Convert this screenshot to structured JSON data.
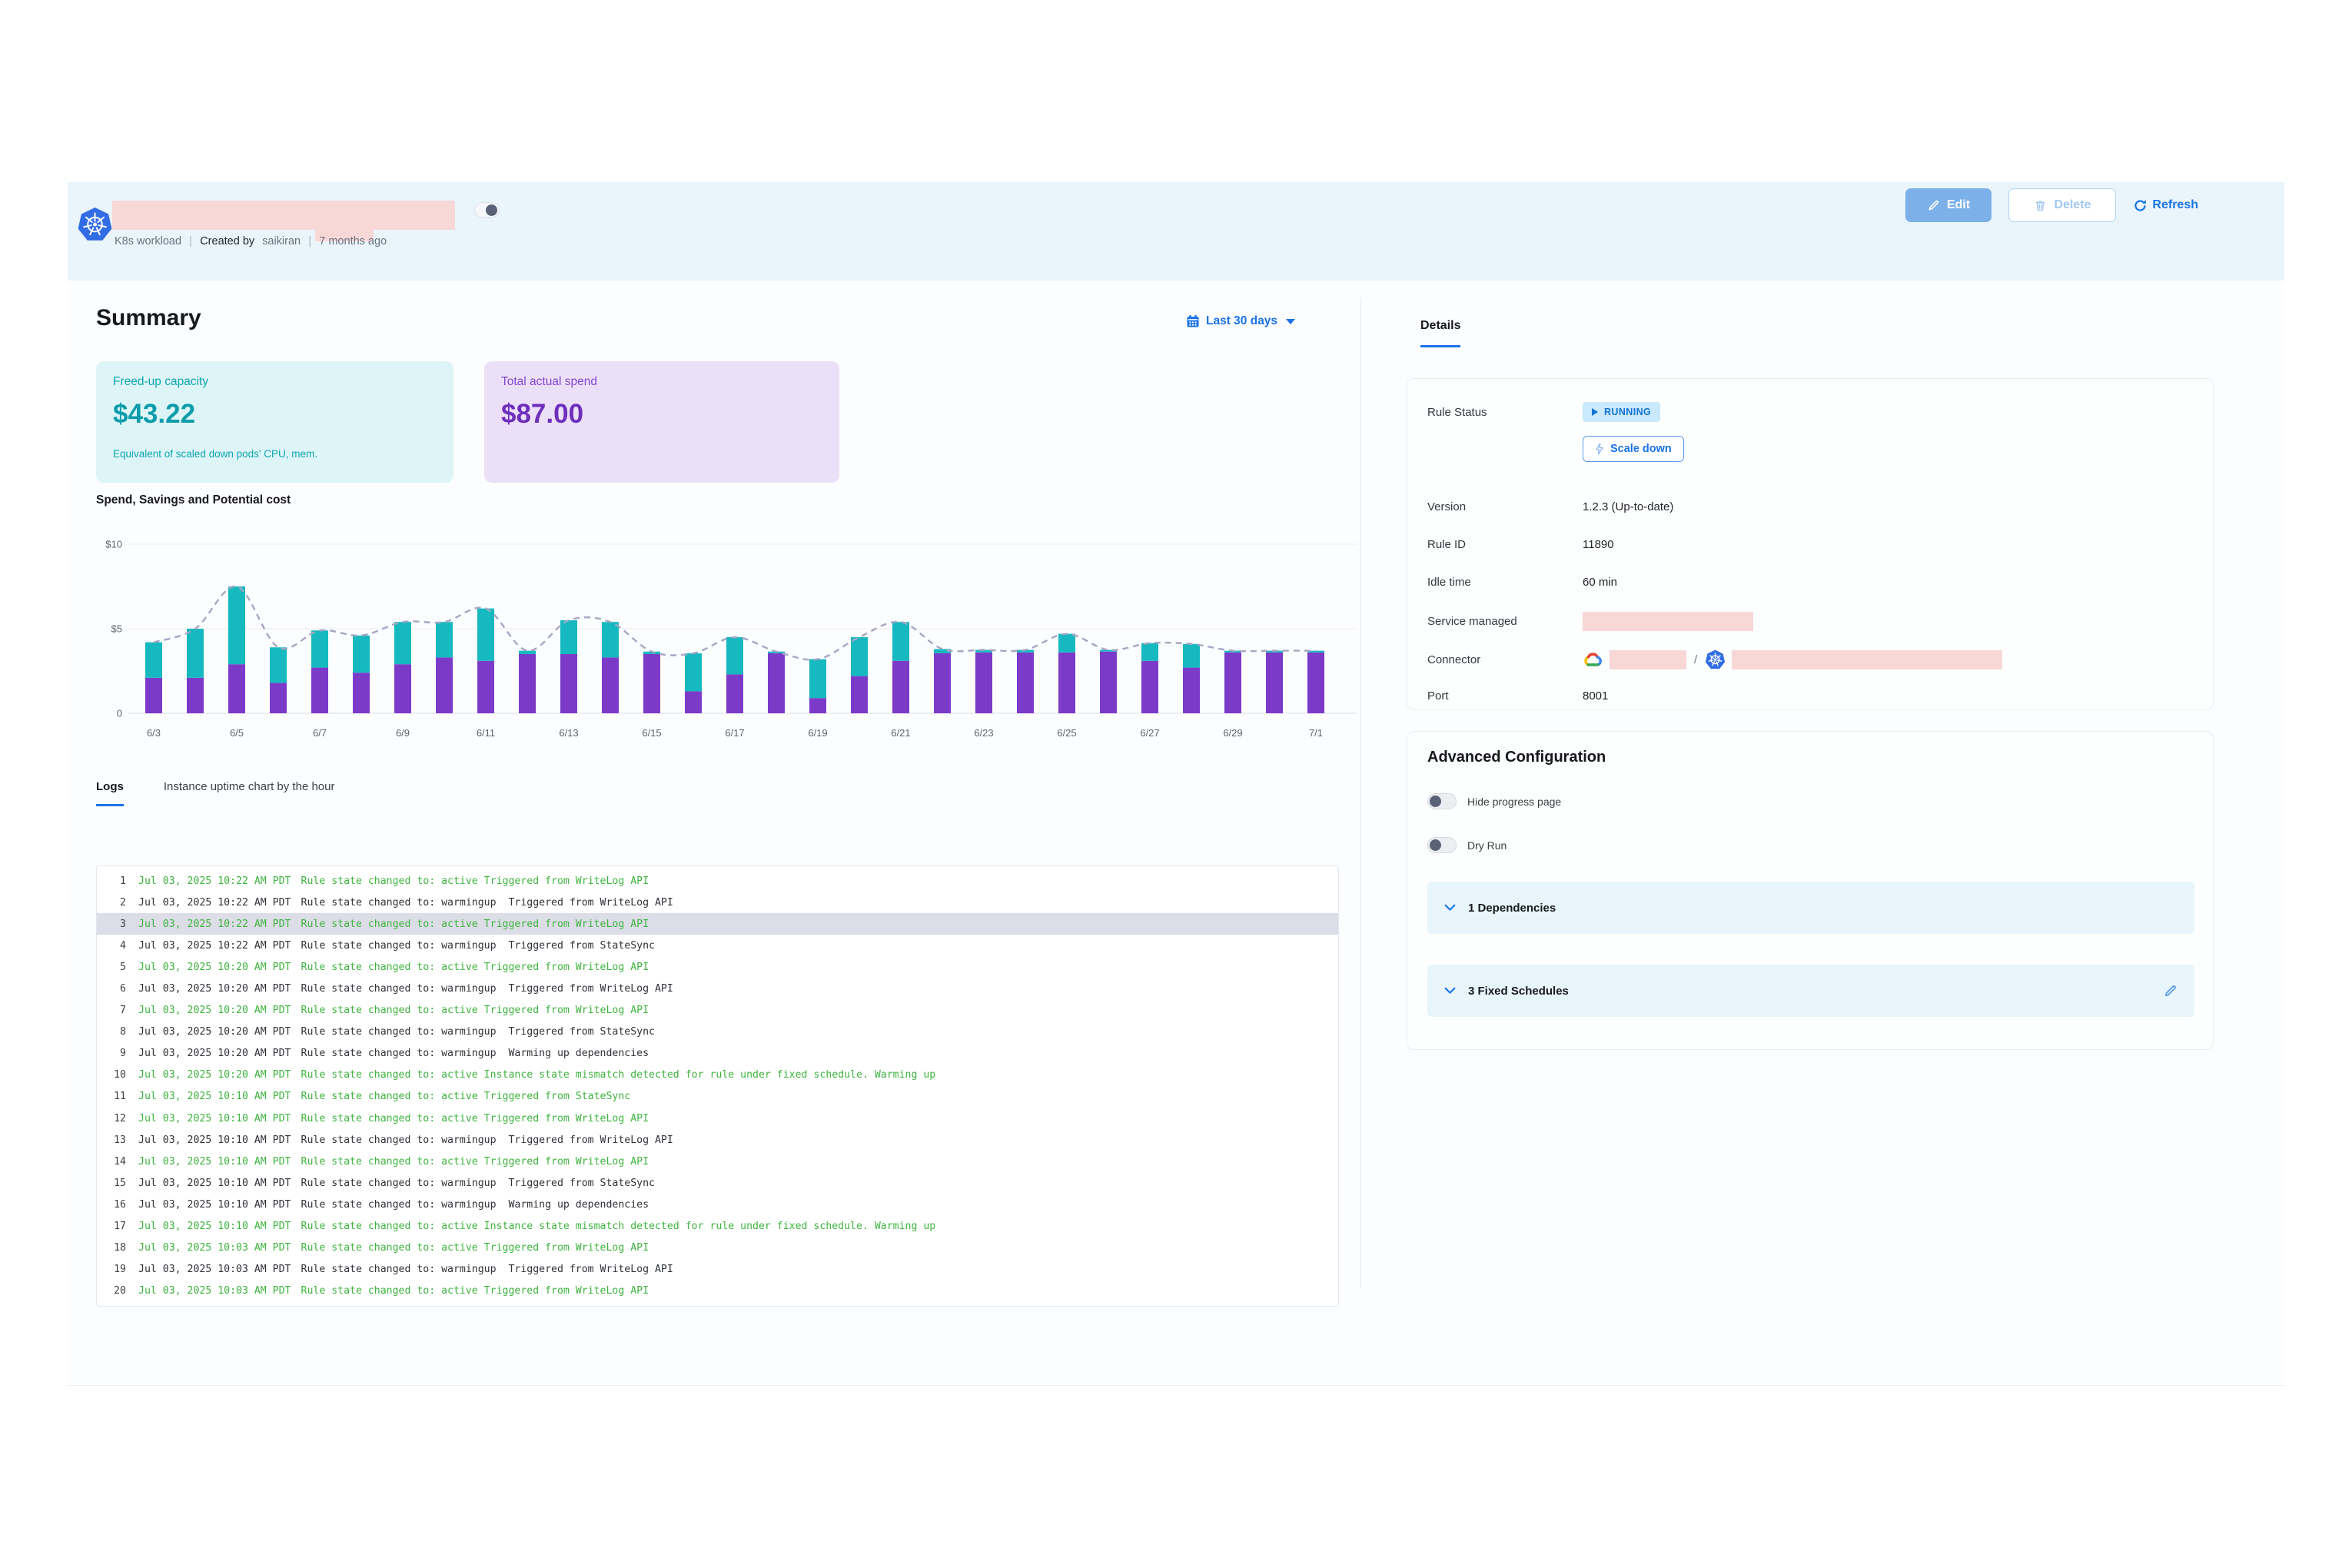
{
  "colors": {
    "accent_blue": "#1a73e8",
    "log_green": "#3eb43e",
    "bar_purple": "#7c3ac9",
    "bar_teal": "#16b9c0",
    "line_gray": "#a8a5c4",
    "redaction_pink": "#f8d7d7",
    "header_band": "#e9f5fb"
  },
  "header": {
    "type_label": "K8s workload",
    "created_by_label": "Created by",
    "created_by_value": "saikiran",
    "age": "7 months ago",
    "edit_label": "Edit",
    "delete_label": "Delete",
    "refresh_label": "Refresh"
  },
  "summary": {
    "title": "Summary",
    "date_range": "Last 30 days",
    "cards": {
      "capacity": {
        "label": "Freed-up capacity",
        "value": "$43.22",
        "caption": "Equivalent of scaled down pods' CPU, mem."
      },
      "spend": {
        "label": "Total actual spend",
        "value": "$87.00"
      }
    }
  },
  "chart_data": {
    "type": "bar",
    "stacked": true,
    "title": "Spend, Savings and Potential cost",
    "categories": [
      "6/3",
      "6/4",
      "6/5",
      "6/6",
      "6/7",
      "6/8",
      "6/9",
      "6/10",
      "6/11",
      "6/12",
      "6/13",
      "6/14",
      "6/15",
      "6/16",
      "6/17",
      "6/18",
      "6/19",
      "6/20",
      "6/21",
      "6/22",
      "6/23",
      "6/24",
      "6/25",
      "6/26",
      "6/27",
      "6/28",
      "6/29",
      "6/30",
      "7/1"
    ],
    "series": [
      {
        "name": "Spend",
        "type": "bar",
        "color": "#7c3ac9",
        "values": [
          2.1,
          2.1,
          2.9,
          1.8,
          2.7,
          2.4,
          2.9,
          3.3,
          3.1,
          3.5,
          3.5,
          3.3,
          3.5,
          1.3,
          2.3,
          3.55,
          0.9,
          2.2,
          3.1,
          3.55,
          3.6,
          3.6,
          3.6,
          3.65,
          3.1,
          2.7,
          3.6,
          3.6,
          3.6
        ]
      },
      {
        "name": "Savings",
        "type": "bar",
        "color": "#16b9c0",
        "values": [
          2.1,
          2.9,
          4.6,
          2.1,
          2.2,
          2.2,
          2.5,
          2.1,
          3.1,
          0.2,
          2.0,
          2.1,
          0.15,
          2.25,
          2.2,
          0.1,
          2.3,
          2.3,
          2.3,
          0.25,
          0.15,
          0.15,
          1.1,
          0.1,
          1.05,
          1.4,
          0.1,
          0.1,
          0.1
        ]
      },
      {
        "name": "Potential cost",
        "type": "line",
        "style": "dashed",
        "color": "#a8a5c4",
        "values": [
          4.2,
          5.0,
          7.5,
          3.9,
          4.9,
          4.6,
          5.4,
          5.4,
          6.2,
          3.7,
          5.5,
          5.4,
          3.65,
          3.55,
          4.5,
          3.65,
          3.2,
          4.5,
          5.4,
          3.8,
          3.75,
          3.75,
          4.7,
          3.75,
          4.15,
          4.1,
          3.7,
          3.7,
          3.7
        ]
      }
    ],
    "ylim": [
      0,
      10
    ],
    "ytick_values": [
      0,
      5,
      10
    ],
    "ytick_labels": [
      "0",
      "$5",
      "$10"
    ],
    "x_tick_every": 2,
    "grid": true,
    "legend": "none"
  },
  "tabs": {
    "logs": "Logs",
    "uptime": "Instance uptime chart by the hour"
  },
  "logs": [
    {
      "n": "1",
      "ts": "Jul 03, 2025 10:22 AM PDT",
      "msg": "Rule state changed to: active Triggered from WriteLog API",
      "tone": "active",
      "hl": false
    },
    {
      "n": "2",
      "ts": "Jul 03, 2025 10:22 AM PDT",
      "msg": "Rule state changed to: warmingup  Triggered from WriteLog API",
      "tone": "neutral",
      "hl": false
    },
    {
      "n": "3",
      "ts": "Jul 03, 2025 10:22 AM PDT",
      "msg": "Rule state changed to: active Triggered from WriteLog API",
      "tone": "active",
      "hl": true
    },
    {
      "n": "4",
      "ts": "Jul 03, 2025 10:22 AM PDT",
      "msg": "Rule state changed to: warmingup  Triggered from StateSync",
      "tone": "neutral",
      "hl": false
    },
    {
      "n": "5",
      "ts": "Jul 03, 2025 10:20 AM PDT",
      "msg": "Rule state changed to: active Triggered from WriteLog API",
      "tone": "active",
      "hl": false
    },
    {
      "n": "6",
      "ts": "Jul 03, 2025 10:20 AM PDT",
      "msg": "Rule state changed to: warmingup  Triggered from WriteLog API",
      "tone": "neutral",
      "hl": false
    },
    {
      "n": "7",
      "ts": "Jul 03, 2025 10:20 AM PDT",
      "msg": "Rule state changed to: active Triggered from WriteLog API",
      "tone": "active",
      "hl": false
    },
    {
      "n": "8",
      "ts": "Jul 03, 2025 10:20 AM PDT",
      "msg": "Rule state changed to: warmingup  Triggered from StateSync",
      "tone": "neutral",
      "hl": false
    },
    {
      "n": "9",
      "ts": "Jul 03, 2025 10:20 AM PDT",
      "msg": "Rule state changed to: warmingup  Warming up dependencies",
      "tone": "neutral",
      "hl": false
    },
    {
      "n": "10",
      "ts": "Jul 03, 2025 10:20 AM PDT",
      "msg": "Rule state changed to: active Instance state mismatch detected for rule under fixed schedule. Warming up",
      "tone": "active",
      "hl": false
    },
    {
      "n": "11",
      "ts": "Jul 03, 2025 10:10 AM PDT",
      "msg": "Rule state changed to: active Triggered from StateSync",
      "tone": "active",
      "hl": false
    },
    {
      "n": "12",
      "ts": "Jul 03, 2025 10:10 AM PDT",
      "msg": "Rule state changed to: active Triggered from WriteLog API",
      "tone": "active",
      "hl": false
    },
    {
      "n": "13",
      "ts": "Jul 03, 2025 10:10 AM PDT",
      "msg": "Rule state changed to: warmingup  Triggered from WriteLog API",
      "tone": "neutral",
      "hl": false
    },
    {
      "n": "14",
      "ts": "Jul 03, 2025 10:10 AM PDT",
      "msg": "Rule state changed to: active Triggered from WriteLog API",
      "tone": "active",
      "hl": false
    },
    {
      "n": "15",
      "ts": "Jul 03, 2025 10:10 AM PDT",
      "msg": "Rule state changed to: warmingup  Triggered from StateSync",
      "tone": "neutral",
      "hl": false
    },
    {
      "n": "16",
      "ts": "Jul 03, 2025 10:10 AM PDT",
      "msg": "Rule state changed to: warmingup  Warming up dependencies",
      "tone": "neutral",
      "hl": false
    },
    {
      "n": "17",
      "ts": "Jul 03, 2025 10:10 AM PDT",
      "msg": "Rule state changed to: active Instance state mismatch detected for rule under fixed schedule. Warming up",
      "tone": "active",
      "hl": false
    },
    {
      "n": "18",
      "ts": "Jul 03, 2025 10:03 AM PDT",
      "msg": "Rule state changed to: active Triggered from WriteLog API",
      "tone": "active",
      "hl": false
    },
    {
      "n": "19",
      "ts": "Jul 03, 2025 10:03 AM PDT",
      "msg": "Rule state changed to: warmingup  Triggered from WriteLog API",
      "tone": "neutral",
      "hl": false
    },
    {
      "n": "20",
      "ts": "Jul 03, 2025 10:03 AM PDT",
      "msg": "Rule state changed to: active Triggered from WriteLog API",
      "tone": "active",
      "hl": false
    }
  ],
  "details": {
    "tab_label": "Details",
    "rule_status_label": "Rule Status",
    "status_badge": "RUNNING",
    "scale_down_label": "Scale down",
    "version_label": "Version",
    "version_value": "1.2.3 (Up-to-date)",
    "rule_id_label": "Rule ID",
    "rule_id_value": "11890",
    "idle_label": "Idle time",
    "idle_value": "60 min",
    "service_label": "Service managed",
    "connector_label": "Connector",
    "connector_separator": "/",
    "port_label": "Port",
    "port_value": "8001"
  },
  "advanced": {
    "title": "Advanced Configuration",
    "toggle_hide_label": "Hide progress page",
    "toggle_dry_label": "Dry Run",
    "dependencies_label": "1 Dependencies",
    "schedules_label": "3 Fixed Schedules"
  }
}
